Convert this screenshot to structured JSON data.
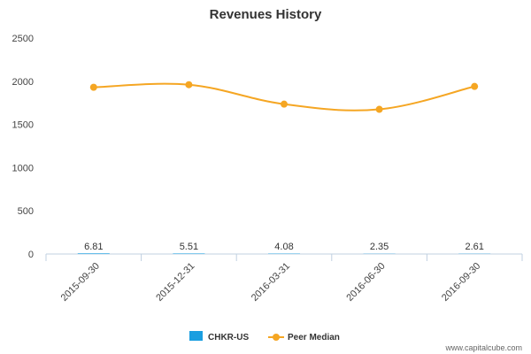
{
  "chart_data": {
    "type": "line",
    "title": "Revenues History",
    "categories": [
      "2015-09-30",
      "2015-12-31",
      "2016-03-31",
      "2016-06-30",
      "2016-09-30"
    ],
    "yticks": [
      "0",
      "500",
      "1000",
      "1500",
      "2000",
      "2500"
    ],
    "ylim": [
      0,
      2500
    ],
    "grid": false,
    "legend_position": "bottom-center",
    "series": [
      {
        "name": "CHKR-US",
        "color": "#1a9ee0",
        "values": [
          6.81,
          5.51,
          4.08,
          2.35,
          2.61
        ],
        "labels": [
          "6.81",
          "5.51",
          "4.08",
          "2.35",
          "2.61"
        ]
      },
      {
        "name": "Peer Median",
        "color": "#f5a623",
        "values": [
          1930,
          1960,
          1735,
          1675,
          1940
        ]
      }
    ]
  },
  "watermark": "www.capitalcube.com"
}
